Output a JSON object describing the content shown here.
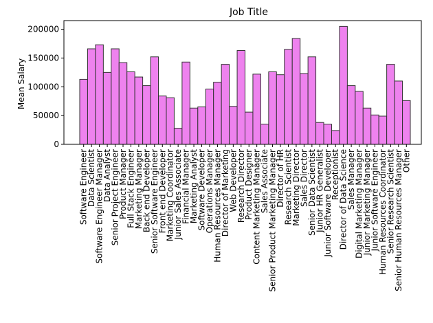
{
  "chart_data": {
    "type": "bar",
    "title": "Job Title",
    "xlabel": "",
    "ylabel": "Mean Salary",
    "ylim": [
      0,
      215000
    ],
    "yticks": [
      0,
      50000,
      100000,
      150000,
      200000
    ],
    "ytick_labels": [
      "0",
      "50000",
      "100000",
      "150000",
      "200000"
    ],
    "grid": false,
    "bar_color": "#ee82ee",
    "edge_color": "#333333",
    "categories": [
      "Software Engineer",
      "Data Scientist",
      "Software Engineer Manager",
      "Data Analyst",
      "Senior Project Engineer",
      "Product Manager",
      "Full Stack Engineer",
      "Marketing Manager",
      "Back end Developer",
      "Senior Software Engineer",
      "Front end Developer",
      "Marketing Coordinator",
      "Junior Sales Associate",
      "Financial Manager",
      "Marketing Analyst",
      "Software Developer",
      "Operations Manager",
      "Human Resources Manager",
      "Director of Marketing",
      "Web Developer",
      "Research Director",
      "Product Designer",
      "Content Marketing Manager",
      "Sales Associate",
      "Senior Product Marketing Manager",
      "Director of HR",
      "Research Scientist",
      "Marketing Director",
      "Sales Director",
      "Senior Data Scientist",
      "Junior HR Generalist",
      "Junior Software Developer",
      "Receptionist",
      "Director of Data Science",
      "Sales Manager",
      "Digital Marketing Manager",
      "Junior Marketing Manager",
      "Junior Software Engineer",
      "Human Resources Coordinator",
      "Senior Research Scientist",
      "Senior Human Resources Manager",
      "Other"
    ],
    "values": [
      113000,
      166000,
      173000,
      125000,
      166000,
      142000,
      126000,
      117000,
      102000,
      152000,
      84000,
      81000,
      28000,
      143000,
      63000,
      65000,
      96000,
      108000,
      139000,
      66000,
      163000,
      56000,
      122000,
      35000,
      126000,
      121000,
      165000,
      184000,
      123000,
      152000,
      38000,
      35000,
      24000,
      205000,
      102000,
      92000,
      63000,
      51000,
      49000,
      139000,
      110000,
      76000
    ]
  }
}
